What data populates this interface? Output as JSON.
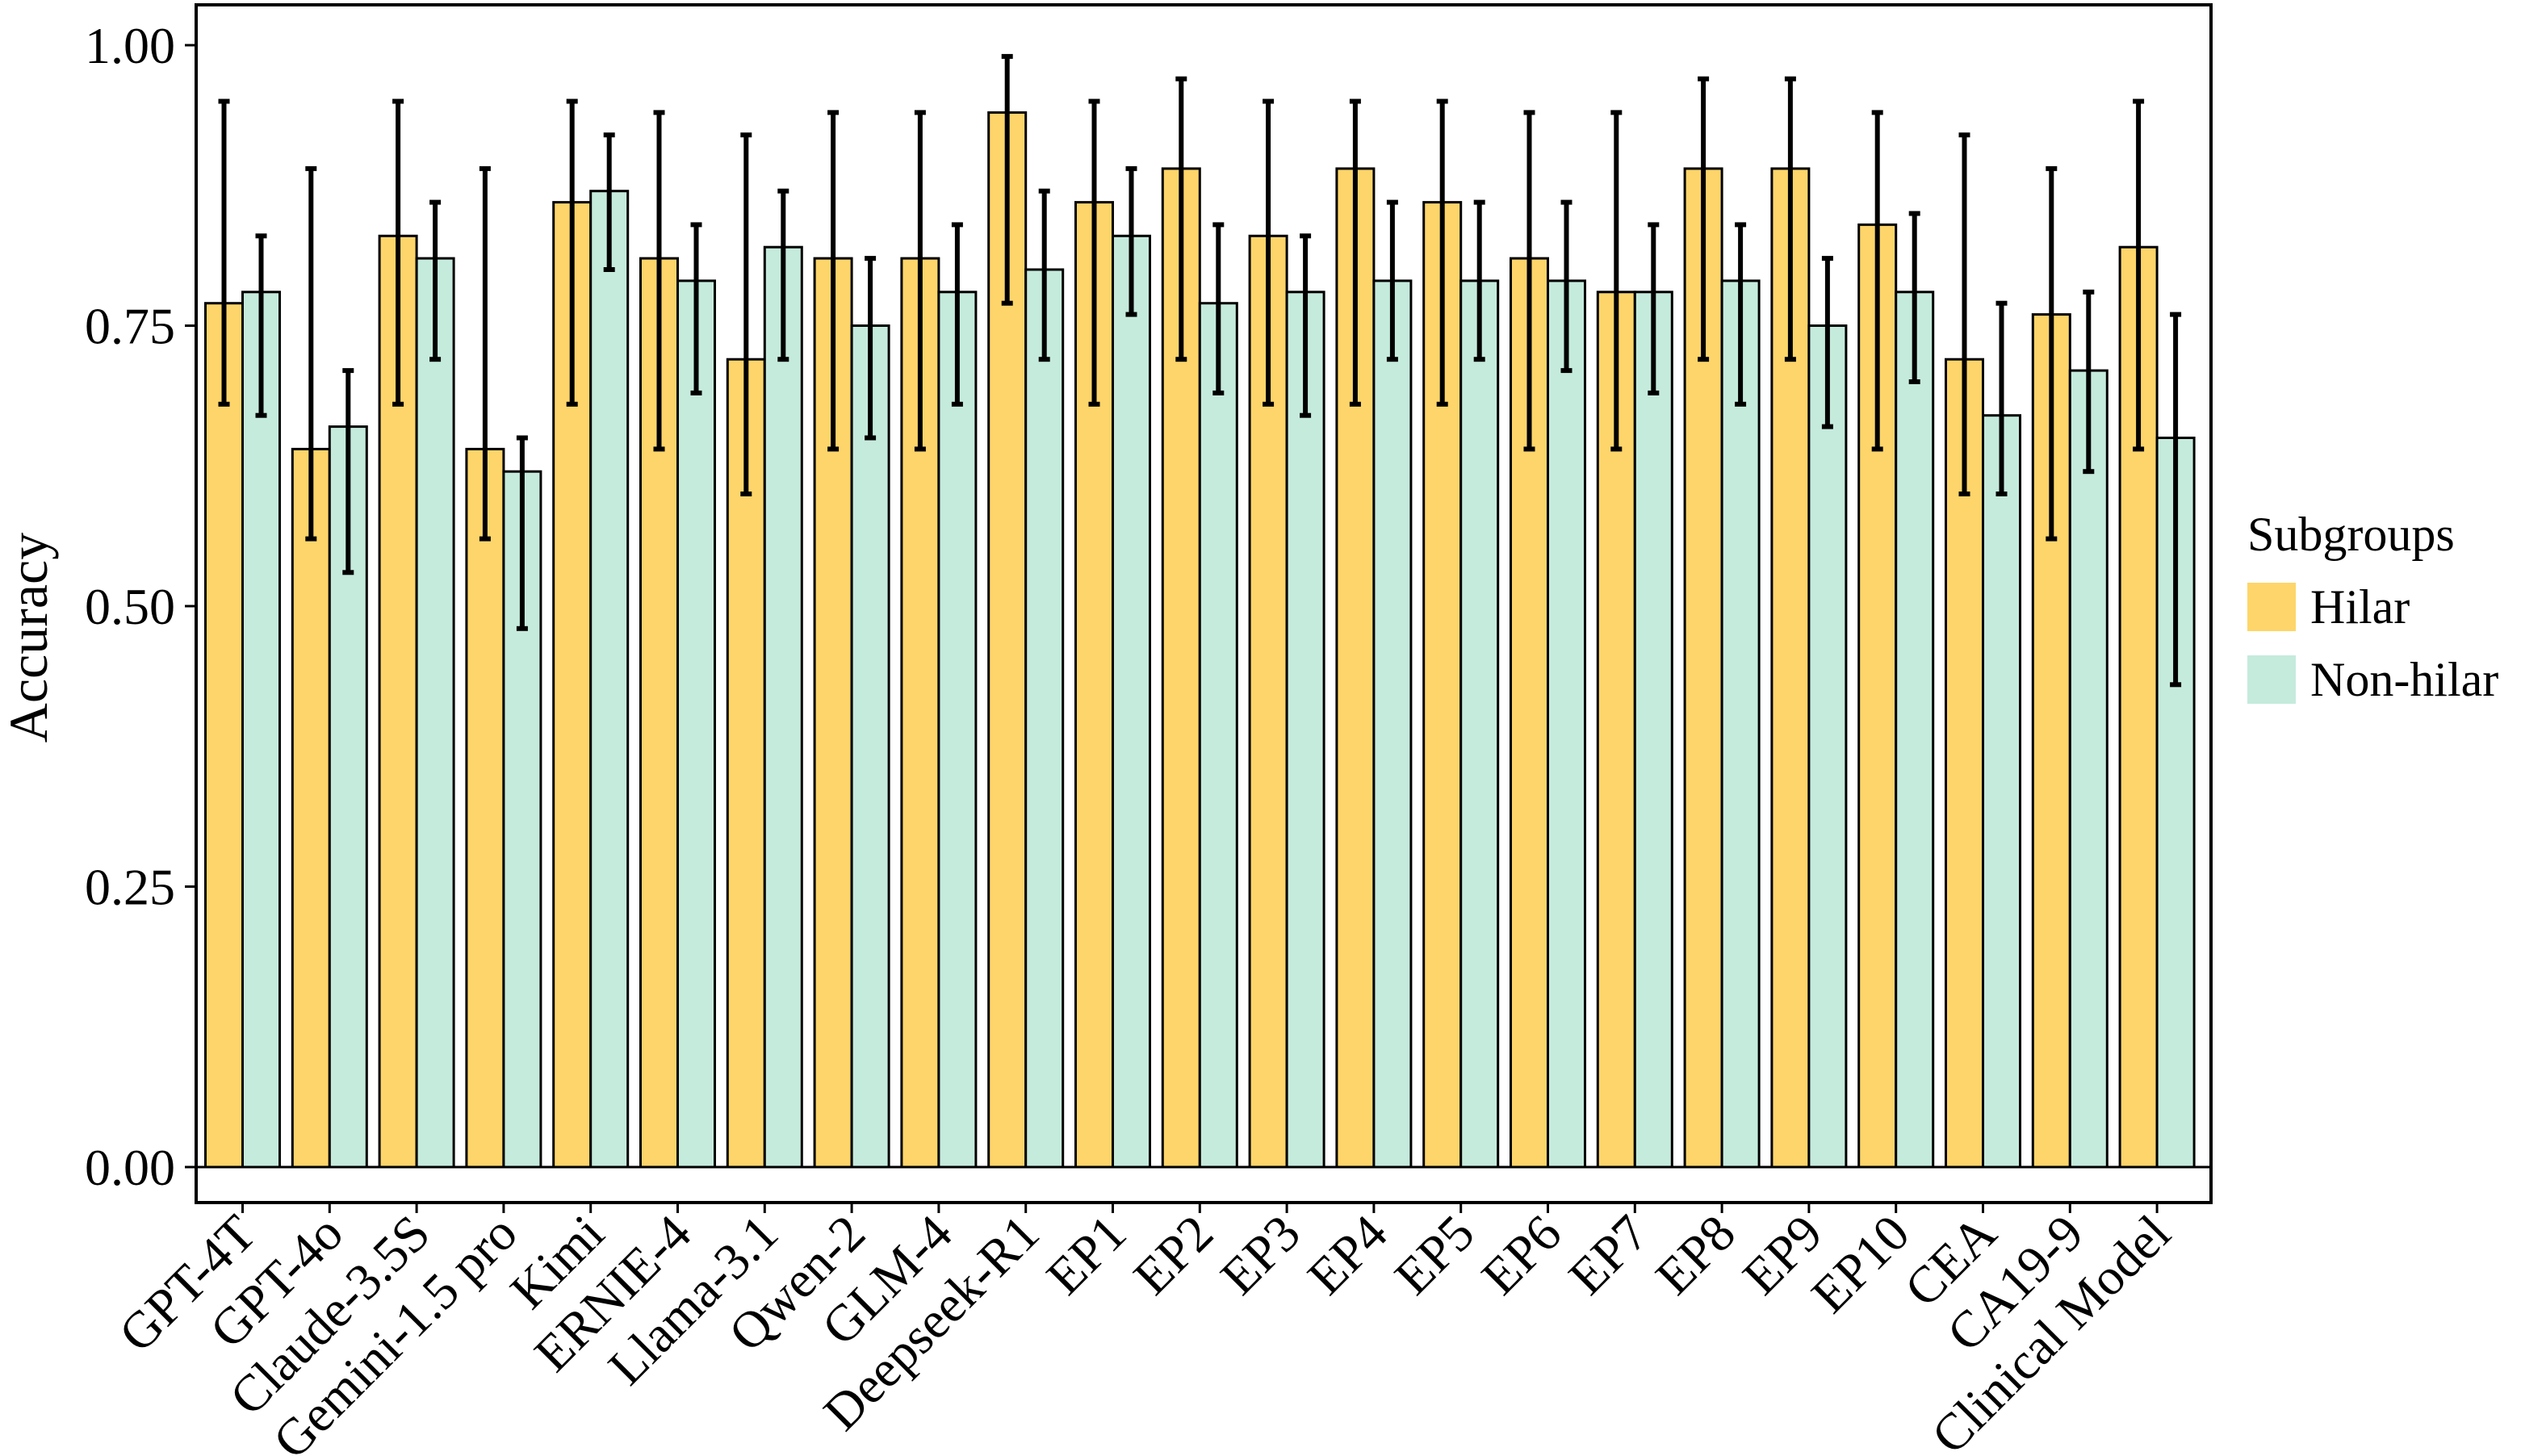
{
  "chart_data": {
    "type": "bar",
    "title": "",
    "xlabel": "",
    "ylabel": "Accuracy",
    "ylim": [
      0,
      1.04
    ],
    "yticks": [
      "0.00",
      "0.25",
      "0.50",
      "0.75",
      "1.00"
    ],
    "ytick_values": [
      0,
      0.25,
      0.5,
      0.75,
      1.0
    ],
    "grid": false,
    "legend": {
      "title": "Subgroups",
      "placement": "right"
    },
    "categories": [
      "GPT-4T",
      "GPT-4o",
      "Claude-3.5S",
      "Gemini-1.5 pro",
      "Kimi",
      "ERNIE-4",
      "Llama-3.1",
      "Qwen-2",
      "GLM-4",
      "Deepseek-R1",
      "EP1",
      "EP2",
      "EP3",
      "EP4",
      "EP5",
      "EP6",
      "EP7",
      "EP8",
      "EP9",
      "EP10",
      "CEA",
      "CA19-9",
      "Clinical Model"
    ],
    "series": [
      {
        "name": "Hilar",
        "color": "#FDD56A",
        "values": [
          0.77,
          0.64,
          0.83,
          0.64,
          0.86,
          0.81,
          0.72,
          0.81,
          0.81,
          0.94,
          0.86,
          0.89,
          0.83,
          0.89,
          0.86,
          0.81,
          0.78,
          0.89,
          0.89,
          0.84,
          0.72,
          0.76,
          0.82
        ],
        "err_low": [
          0.68,
          0.56,
          0.68,
          0.56,
          0.68,
          0.64,
          0.6,
          0.64,
          0.64,
          0.77,
          0.68,
          0.72,
          0.68,
          0.68,
          0.68,
          0.64,
          0.64,
          0.72,
          0.72,
          0.64,
          0.6,
          0.56,
          0.64
        ],
        "err_high": [
          0.95,
          0.89,
          0.95,
          0.89,
          0.95,
          0.94,
          0.92,
          0.94,
          0.94,
          0.99,
          0.95,
          0.97,
          0.95,
          0.95,
          0.95,
          0.94,
          0.94,
          0.97,
          0.97,
          0.94,
          0.92,
          0.89,
          0.95
        ]
      },
      {
        "name": "Non-hilar",
        "color": "#C5EBDD",
        "values": [
          0.78,
          0.66,
          0.81,
          0.62,
          0.87,
          0.79,
          0.82,
          0.75,
          0.78,
          0.8,
          0.83,
          0.77,
          0.78,
          0.79,
          0.79,
          0.79,
          0.78,
          0.79,
          0.75,
          0.78,
          0.67,
          0.71,
          0.65
        ],
        "err_low": [
          0.67,
          0.53,
          0.72,
          0.48,
          0.8,
          0.69,
          0.72,
          0.65,
          0.68,
          0.72,
          0.76,
          0.69,
          0.67,
          0.72,
          0.72,
          0.71,
          0.69,
          0.68,
          0.66,
          0.7,
          0.6,
          0.62,
          0.43
        ],
        "err_high": [
          0.83,
          0.71,
          0.86,
          0.65,
          0.92,
          0.84,
          0.87,
          0.81,
          0.84,
          0.87,
          0.89,
          0.84,
          0.83,
          0.86,
          0.86,
          0.86,
          0.84,
          0.84,
          0.81,
          0.85,
          0.77,
          0.78,
          0.76
        ]
      }
    ]
  }
}
